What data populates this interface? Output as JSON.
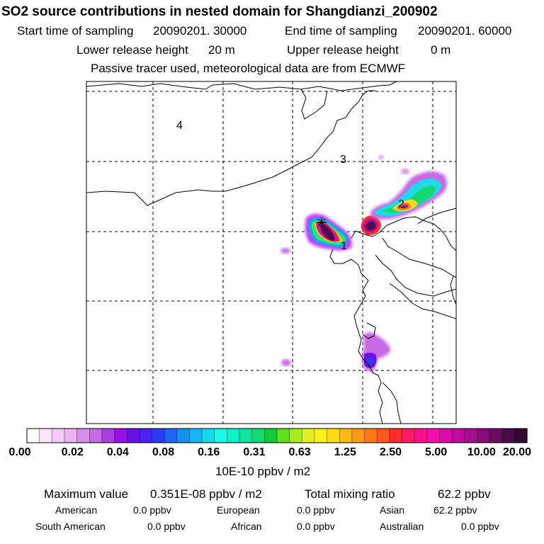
{
  "title": "SO2 source contributions in nested domain for Shangdianzi_200902",
  "sampling": {
    "start_label": "Start time of sampling",
    "start_value": "20090201. 30000",
    "end_label": "End time of sampling",
    "end_value": "20090201. 60000"
  },
  "release": {
    "lower_label": "Lower release height",
    "lower_value": "20 m",
    "upper_label": "Upper release height",
    "upper_value": "0 m"
  },
  "note": "Passive tracer used, meteorological data are from ECMWF",
  "chart_data": {
    "type": "heatmap",
    "title": "SO2 source contributions in nested domain for Shangdianzi_200902",
    "region_labels": [
      "1",
      "2",
      "3",
      "4"
    ],
    "colorbar": {
      "tick_labels": [
        "0.00",
        "0.02",
        "0.04",
        "0.08",
        "0.16",
        "0.31",
        "0.63",
        "1.25",
        "2.50",
        "5.00",
        "10.00",
        "20.00"
      ],
      "tick_values": [
        0.0,
        0.02,
        0.04,
        0.08,
        0.16,
        0.31,
        0.63,
        1.25,
        2.5,
        5.0,
        10.0,
        20.0
      ],
      "unit": "10E-10 ppbv / m2",
      "colors": [
        "#ffffff",
        "#fbe6fb",
        "#f4cdf6",
        "#ecb3f1",
        "#d58ee9",
        "#c56be4",
        "#ad3de0",
        "#9610e0",
        "#6a10e6",
        "#4d20f0",
        "#2c3cf5",
        "#1d67f0",
        "#1690f0",
        "#16b4f0",
        "#18d8ee",
        "#1cf7e6",
        "#10f0c8",
        "#10e49c",
        "#14d870",
        "#10c83c",
        "#60e020",
        "#a8ec20",
        "#e0f020",
        "#fff01c",
        "#ffd818",
        "#ffb818",
        "#ff9a18",
        "#ff7818",
        "#ff5a1c",
        "#ff2c2c",
        "#ff1c60",
        "#ff108c",
        "#f010b0",
        "#d80ca8",
        "#c00c9c",
        "#a4108c",
        "#880c78",
        "#6a0c60",
        "#4a0a48",
        "#300830"
      ]
    },
    "grid": true
  },
  "stats": {
    "max_label": "Maximum value",
    "max_value": "0.351E-08 ppbv / m2",
    "total_label": "Total mixing ratio",
    "total_value": "62.2 ppbv"
  },
  "regions": {
    "american": {
      "label": "American",
      "value": "0.0 ppbv"
    },
    "european": {
      "label": "European",
      "value": "0.0 ppbv"
    },
    "asian": {
      "label": "Asian",
      "value": "62.2 ppbv"
    },
    "south_american": {
      "label": "South American",
      "value": "0.0 ppbv"
    },
    "african": {
      "label": "African",
      "value": "0.0 ppbv"
    },
    "australian": {
      "label": "Australian",
      "value": "0.0 ppbv"
    }
  }
}
